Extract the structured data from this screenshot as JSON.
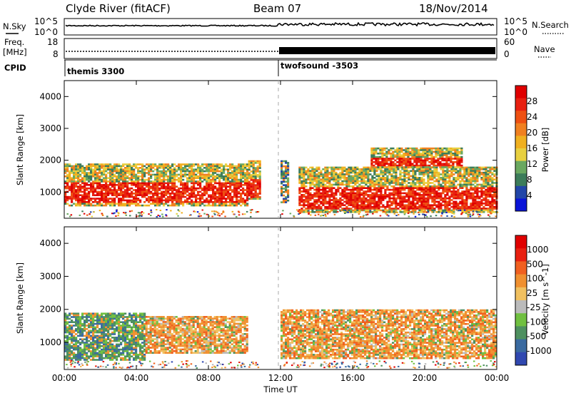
{
  "header": {
    "station": "Clyde River (fitACF)",
    "beam": "Beam 07",
    "date": "18/Nov/2014"
  },
  "noise_panel": {
    "left_label": "N.Sky",
    "right_label": "N.Search",
    "y_ticks_left": [
      "10^5",
      "10^0"
    ],
    "y_ticks_right": [
      "10^5",
      "10^0"
    ]
  },
  "freq_panel": {
    "left_label_1": "Freq.",
    "left_label_2": "[MHz]",
    "right_label": "Nave",
    "y_ticks_left": [
      "18",
      "8"
    ],
    "y_ticks_right": [
      "60",
      "0"
    ]
  },
  "cpid": {
    "label": "CPID",
    "modes": [
      {
        "name": "themis 3300",
        "start_hour": 0
      },
      {
        "name": "twofsound -3503",
        "start_hour": 12
      }
    ]
  },
  "colors": {
    "power": [
      "#0a14d8",
      "#2246a8",
      "#3c7c5a",
      "#6aa860",
      "#e8d040",
      "#f0b020",
      "#f08020",
      "#ee5012",
      "#e82010",
      "#e00000"
    ],
    "velocity": [
      "#3048b0",
      "#3a6aa0",
      "#4e9060",
      "#70c040",
      "#bbbbbb",
      "#f0c060",
      "#f09030",
      "#f06020",
      "#e82010",
      "#e00000"
    ]
  },
  "chart_data": [
    {
      "type": "heatmap",
      "panel": "power",
      "quantity": "Power",
      "ylabel": "Slant Range [km]",
      "xlabel": "Time UT",
      "xlim_hours": [
        0,
        24
      ],
      "ylim": [
        180,
        4500
      ],
      "x_ticks": [
        "00:00",
        "04:00",
        "08:00",
        "12:00",
        "16:00",
        "20:00",
        "00:00"
      ],
      "y_ticks": [
        1000,
        2000,
        3000,
        4000
      ],
      "colorbar": {
        "label": "Power [dB]",
        "ticks": [
          4,
          8,
          12,
          16,
          20,
          24,
          28
        ]
      },
      "echo_bands": [
        {
          "from_hour": 0.0,
          "to_hour": 10.2,
          "range_km": [
            600,
            1900
          ],
          "dominant": "strong red/orange 20–30 dB"
        },
        {
          "from_hour": 10.2,
          "to_hour": 10.8,
          "range_km": [
            800,
            2000
          ],
          "dominant": "orange/green"
        },
        {
          "from_hour": 12.0,
          "to_hour": 12.4,
          "range_km": [
            700,
            2000
          ],
          "dominant": "blue/green/orange"
        },
        {
          "from_hour": 13.0,
          "to_hour": 24.0,
          "range_km": [
            400,
            1800
          ],
          "dominant": "strong red 24–30 dB"
        },
        {
          "from_hour": 17.0,
          "to_hour": 22.0,
          "range_km": [
            1800,
            2400
          ],
          "dominant": "red/orange patches"
        }
      ]
    },
    {
      "type": "heatmap",
      "panel": "velocity",
      "quantity": "Velocity",
      "ylabel": "Slant Range [km]",
      "xlabel": "Time UT",
      "xlim_hours": [
        0,
        24
      ],
      "ylim": [
        180,
        4500
      ],
      "x_ticks": [
        "00:00",
        "04:00",
        "08:00",
        "12:00",
        "16:00",
        "20:00",
        "00:00"
      ],
      "y_ticks": [
        1000,
        2000,
        3000,
        4000
      ],
      "colorbar": {
        "label": "Velocity [m s^-1]",
        "ticks": [
          1000,
          500,
          100,
          25,
          -25,
          -100,
          -500,
          -1000
        ]
      },
      "echo_bands": [
        {
          "from_hour": 0.0,
          "to_hour": 4.5,
          "range_km": [
            500,
            1900
          ],
          "dominant": "green / dark green 100–500"
        },
        {
          "from_hour": 4.5,
          "to_hour": 10.2,
          "range_km": [
            700,
            1800
          ],
          "dominant": "orange -100 to -500"
        },
        {
          "from_hour": 12.0,
          "to_hour": 24.0,
          "range_km": [
            500,
            2000
          ],
          "dominant": "orange with green/grey patches"
        }
      ]
    }
  ],
  "time_axis_label": "Time UT"
}
